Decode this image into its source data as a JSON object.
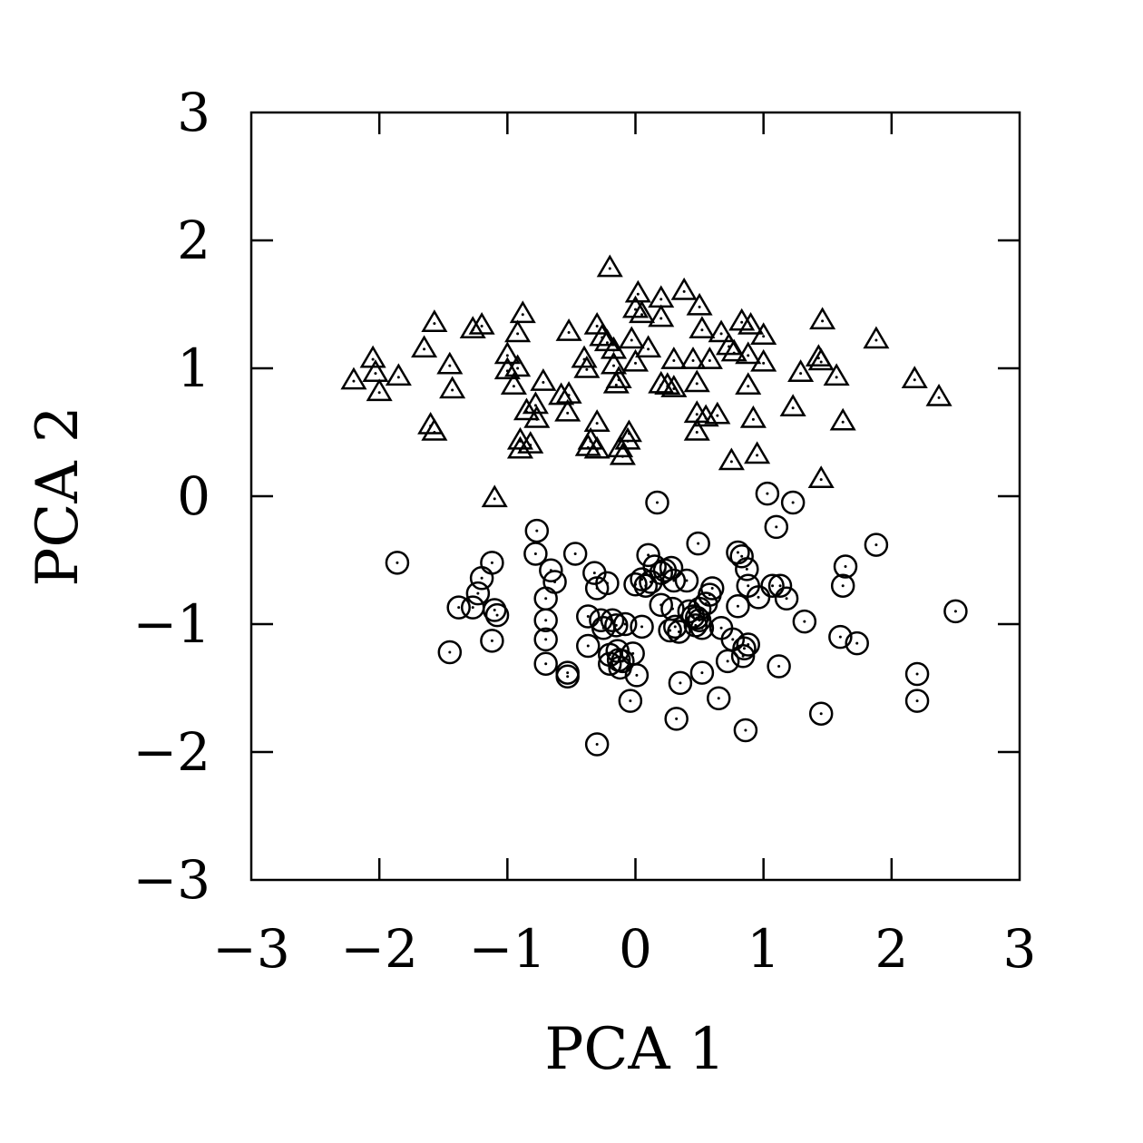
{
  "chart_data": {
    "type": "scatter",
    "title": "",
    "xlabel": "PCA 1",
    "ylabel": "PCA 2",
    "xlim": [
      -3,
      3
    ],
    "ylim": [
      -3,
      3
    ],
    "x_ticks": [
      -3,
      -2,
      -1,
      0,
      1,
      2,
      3
    ],
    "y_ticks": [
      -3,
      -2,
      -1,
      0,
      1,
      2,
      3
    ],
    "x_tick_labels": [
      "−3",
      "−2",
      "−1",
      "0",
      "1",
      "2",
      "3"
    ],
    "y_tick_labels": [
      "−3",
      "−2",
      "−1",
      "0",
      "1",
      "2",
      "3"
    ],
    "grid": false,
    "legend": "none",
    "series": [
      {
        "marker": "triangle",
        "points": [
          [
            -2.2,
            0.9
          ],
          [
            -2.05,
            1.07
          ],
          [
            -2.03,
            0.96
          ],
          [
            -2.0,
            0.81
          ],
          [
            -1.85,
            0.93
          ],
          [
            -1.65,
            1.15
          ],
          [
            -1.57,
            1.35
          ],
          [
            -1.6,
            0.55
          ],
          [
            -1.57,
            0.5
          ],
          [
            -1.45,
            1.02
          ],
          [
            -1.43,
            0.83
          ],
          [
            -1.27,
            1.3
          ],
          [
            -1.2,
            1.33
          ],
          [
            -1.1,
            -0.02
          ],
          [
            -1.0,
            1.1
          ],
          [
            -1.0,
            0.98
          ],
          [
            -0.95,
            0.86
          ],
          [
            -0.92,
            1.0
          ],
          [
            -0.92,
            1.27
          ],
          [
            -0.88,
            1.42
          ],
          [
            -0.9,
            0.43
          ],
          [
            -0.9,
            0.36
          ],
          [
            -0.82,
            0.4
          ],
          [
            -0.85,
            0.66
          ],
          [
            -0.78,
            0.71
          ],
          [
            -0.77,
            0.6
          ],
          [
            -0.72,
            0.89
          ],
          [
            -0.58,
            0.78
          ],
          [
            -0.53,
            0.65
          ],
          [
            -0.52,
            0.79
          ],
          [
            -0.52,
            1.28
          ],
          [
            -0.4,
            1.07
          ],
          [
            -0.38,
            0.99
          ],
          [
            -0.37,
            0.38
          ],
          [
            -0.35,
            0.43
          ],
          [
            -0.3,
            0.36
          ],
          [
            -0.3,
            0.57
          ],
          [
            -0.3,
            1.33
          ],
          [
            -0.26,
            1.24
          ],
          [
            -0.22,
            1.2
          ],
          [
            -0.2,
            1.78
          ],
          [
            -0.17,
            1.14
          ],
          [
            -0.17,
            1.02
          ],
          [
            -0.15,
            0.87
          ],
          [
            -0.13,
            0.91
          ],
          [
            -0.12,
            0.37
          ],
          [
            -0.1,
            0.31
          ],
          [
            -0.06,
            0.43
          ],
          [
            -0.05,
            0.49
          ],
          [
            -0.03,
            1.22
          ],
          [
            0.0,
            1.04
          ],
          [
            0.0,
            1.46
          ],
          [
            0.02,
            1.58
          ],
          [
            0.05,
            1.42
          ],
          [
            0.1,
            1.15
          ],
          [
            0.2,
            1.54
          ],
          [
            0.2,
            1.39
          ],
          [
            0.2,
            0.87
          ],
          [
            0.25,
            0.86
          ],
          [
            0.3,
            0.84
          ],
          [
            0.3,
            1.06
          ],
          [
            0.38,
            1.6
          ],
          [
            0.45,
            1.06
          ],
          [
            0.48,
            0.88
          ],
          [
            0.48,
            0.5
          ],
          [
            0.48,
            0.64
          ],
          [
            0.5,
            1.48
          ],
          [
            0.52,
            1.3
          ],
          [
            0.55,
            0.61
          ],
          [
            0.58,
            1.06
          ],
          [
            0.64,
            0.63
          ],
          [
            0.67,
            1.27
          ],
          [
            0.73,
            1.17
          ],
          [
            0.77,
            1.12
          ],
          [
            0.75,
            0.27
          ],
          [
            0.83,
            1.36
          ],
          [
            0.9,
            1.33
          ],
          [
            0.88,
            1.1
          ],
          [
            0.88,
            0.86
          ],
          [
            0.92,
            0.6
          ],
          [
            0.95,
            0.32
          ],
          [
            1.0,
            1.04
          ],
          [
            1.0,
            1.25
          ],
          [
            1.23,
            0.69
          ],
          [
            1.29,
            0.96
          ],
          [
            1.43,
            1.08
          ],
          [
            1.45,
            1.05
          ],
          [
            1.46,
            1.37
          ],
          [
            1.45,
            0.13
          ],
          [
            1.57,
            0.93
          ],
          [
            1.62,
            0.58
          ],
          [
            1.88,
            1.22
          ],
          [
            2.18,
            0.91
          ],
          [
            2.37,
            0.77
          ]
        ]
      },
      {
        "marker": "circle",
        "points": [
          [
            -1.86,
            -0.52
          ],
          [
            -1.45,
            -1.22
          ],
          [
            -1.38,
            -0.87
          ],
          [
            -1.27,
            -0.87
          ],
          [
            -1.23,
            -0.76
          ],
          [
            -1.2,
            -0.64
          ],
          [
            -1.12,
            -1.13
          ],
          [
            -1.12,
            -0.52
          ],
          [
            -1.1,
            -0.89
          ],
          [
            -1.08,
            -0.93
          ],
          [
            -0.77,
            -0.27
          ],
          [
            -0.78,
            -0.45
          ],
          [
            -0.7,
            -0.8
          ],
          [
            -0.7,
            -0.97
          ],
          [
            -0.7,
            -1.12
          ],
          [
            -0.7,
            -1.31
          ],
          [
            -0.66,
            -0.58
          ],
          [
            -0.63,
            -0.67
          ],
          [
            -0.53,
            -1.38
          ],
          [
            -0.53,
            -1.41
          ],
          [
            -0.47,
            -0.45
          ],
          [
            -0.37,
            -0.94
          ],
          [
            -0.37,
            -1.17
          ],
          [
            -0.32,
            -0.6
          ],
          [
            -0.3,
            -0.72
          ],
          [
            -0.3,
            -1.94
          ],
          [
            -0.27,
            -0.97
          ],
          [
            -0.25,
            -1.03
          ],
          [
            -0.22,
            -0.68
          ],
          [
            -0.2,
            -1.24
          ],
          [
            -0.2,
            -1.31
          ],
          [
            -0.18,
            -0.97
          ],
          [
            -0.15,
            -1.01
          ],
          [
            -0.14,
            -1.21
          ],
          [
            -0.13,
            -1.28
          ],
          [
            -0.12,
            -1.34
          ],
          [
            -0.1,
            -1.29
          ],
          [
            -0.08,
            -1.0
          ],
          [
            -0.04,
            -1.6
          ],
          [
            -0.02,
            -1.23
          ],
          [
            0.0,
            -0.69
          ],
          [
            0.01,
            -1.4
          ],
          [
            0.05,
            -1.02
          ],
          [
            0.05,
            -0.65
          ],
          [
            0.08,
            -0.7
          ],
          [
            0.1,
            -0.46
          ],
          [
            0.12,
            -0.67
          ],
          [
            0.15,
            -0.55
          ],
          [
            0.17,
            -0.05
          ],
          [
            0.2,
            -0.6
          ],
          [
            0.2,
            -0.85
          ],
          [
            0.23,
            -0.58
          ],
          [
            0.27,
            -1.05
          ],
          [
            0.28,
            -0.56
          ],
          [
            0.29,
            -0.88
          ],
          [
            0.3,
            -0.66
          ],
          [
            0.31,
            -1.02
          ],
          [
            0.32,
            -1.74
          ],
          [
            0.34,
            -1.06
          ],
          [
            0.35,
            -1.46
          ],
          [
            0.4,
            -0.66
          ],
          [
            0.42,
            -0.9
          ],
          [
            0.45,
            -0.94
          ],
          [
            0.47,
            -1.01
          ],
          [
            0.48,
            -0.95
          ],
          [
            0.49,
            -0.37
          ],
          [
            0.5,
            -0.97
          ],
          [
            0.5,
            -0.88
          ],
          [
            0.52,
            -1.03
          ],
          [
            0.52,
            -1.38
          ],
          [
            0.55,
            -0.84
          ],
          [
            0.58,
            -0.77
          ],
          [
            0.6,
            -0.72
          ],
          [
            0.65,
            -1.58
          ],
          [
            0.67,
            -1.03
          ],
          [
            0.72,
            -1.29
          ],
          [
            0.76,
            -1.12
          ],
          [
            0.8,
            -0.44
          ],
          [
            0.8,
            -0.86
          ],
          [
            0.83,
            -0.47
          ],
          [
            0.84,
            -1.25
          ],
          [
            0.85,
            -1.19
          ],
          [
            0.86,
            -1.83
          ],
          [
            0.87,
            -0.57
          ],
          [
            0.88,
            -0.7
          ],
          [
            0.88,
            -1.16
          ],
          [
            0.96,
            -0.79
          ],
          [
            1.03,
            0.02
          ],
          [
            1.07,
            -0.7
          ],
          [
            1.1,
            -0.24
          ],
          [
            1.12,
            -1.33
          ],
          [
            1.13,
            -0.7
          ],
          [
            1.18,
            -0.8
          ],
          [
            1.23,
            -0.05
          ],
          [
            1.32,
            -0.98
          ],
          [
            1.45,
            -1.7
          ],
          [
            1.6,
            -1.1
          ],
          [
            1.62,
            -0.7
          ],
          [
            1.64,
            -0.55
          ],
          [
            1.73,
            -1.15
          ],
          [
            1.88,
            -0.38
          ],
          [
            2.2,
            -1.39
          ],
          [
            2.2,
            -1.6
          ],
          [
            2.5,
            -0.9
          ]
        ]
      }
    ]
  }
}
